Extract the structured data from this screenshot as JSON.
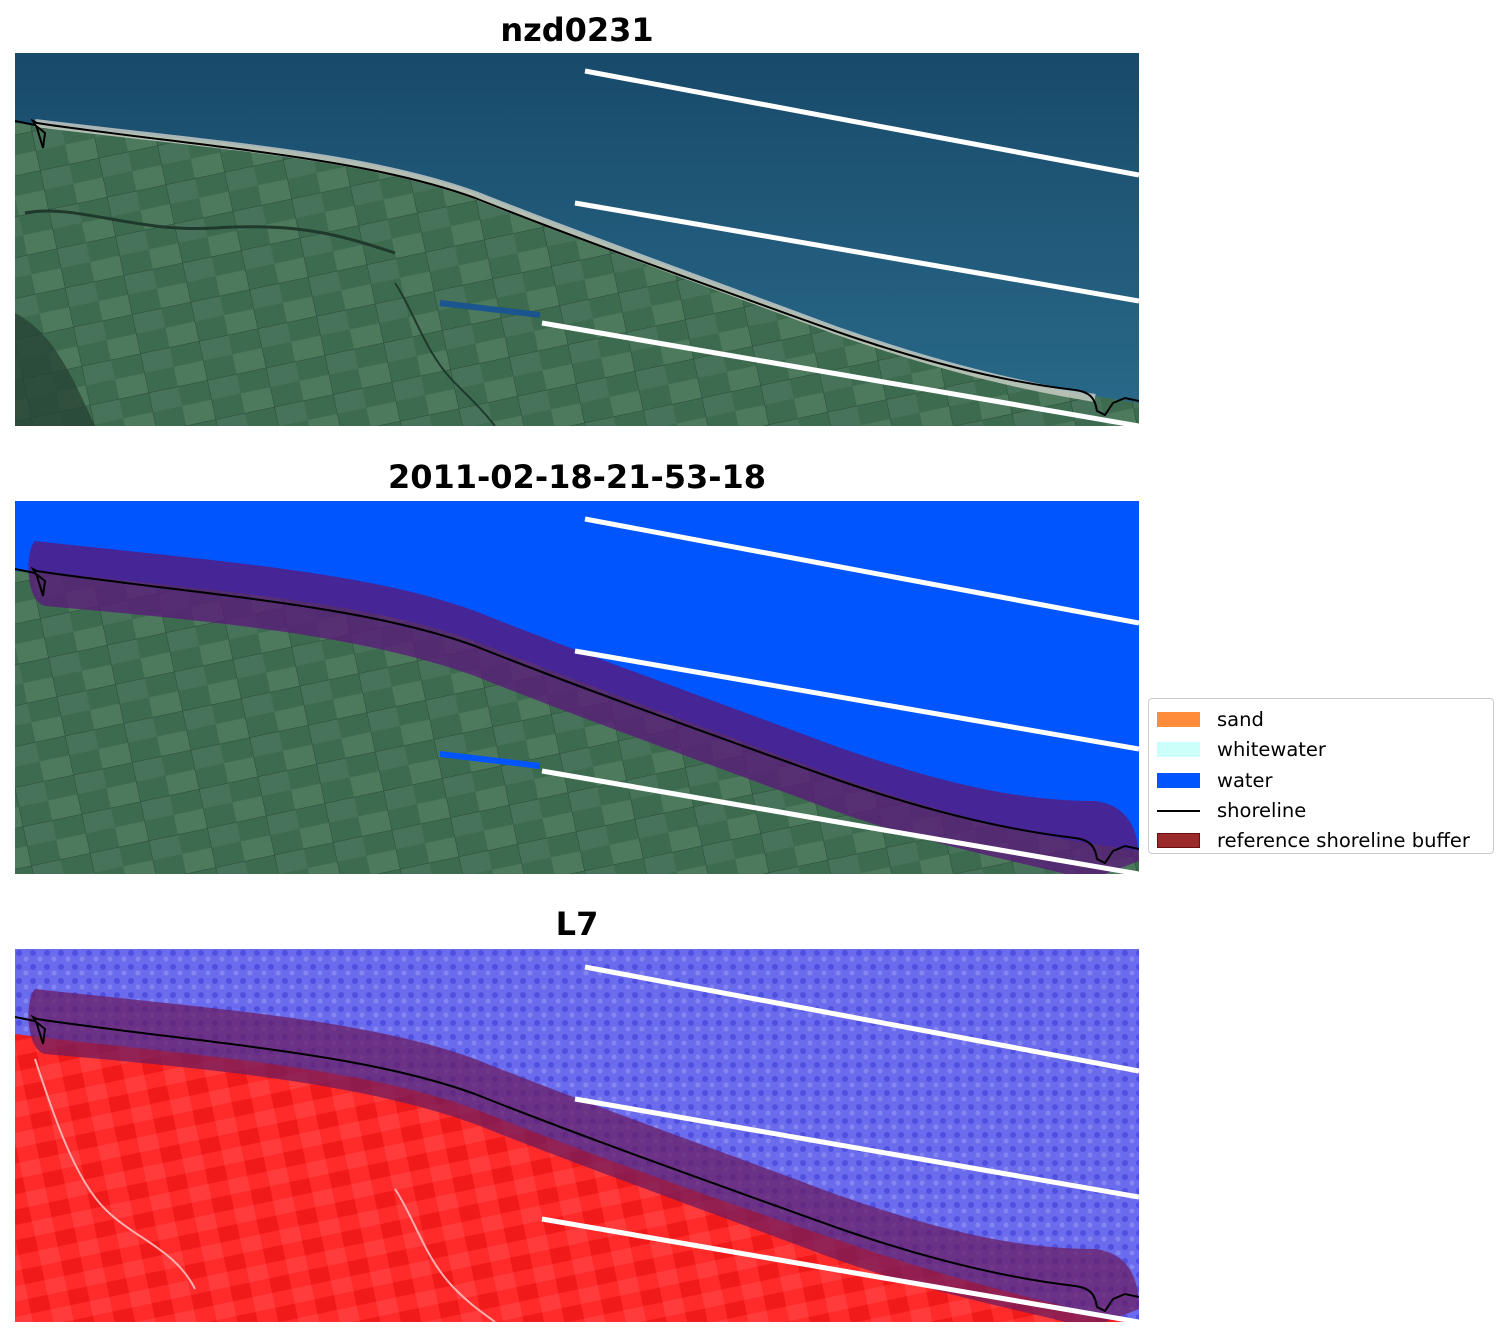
{
  "panels": [
    {
      "title": "nzd0231",
      "style": "rgb"
    },
    {
      "title": "2011-02-18-21-53-18",
      "style": "classified"
    },
    {
      "title": "L7",
      "style": "index"
    }
  ],
  "legend": {
    "items": [
      {
        "label": "sand",
        "color": "#ff8c3a",
        "kind": "patch"
      },
      {
        "label": "whitewater",
        "color": "#ccfffa",
        "kind": "patch"
      },
      {
        "label": "water",
        "color": "#0055ff",
        "kind": "patch"
      },
      {
        "label": "shoreline",
        "color": "#000000",
        "kind": "line"
      },
      {
        "label": "reference shoreline buffer",
        "color": "#8b1a1a",
        "kind": "patch"
      }
    ]
  },
  "colors": {
    "sea_rgb": "#1f5678",
    "land_rgb": "#3b6b4e",
    "water_class": "#0055ff",
    "buffer": "#7a1a4a",
    "index_sea": "#6b6bee",
    "index_land": "#ff2a2a",
    "transect": "#ffffff",
    "shoreline": "#000000"
  }
}
